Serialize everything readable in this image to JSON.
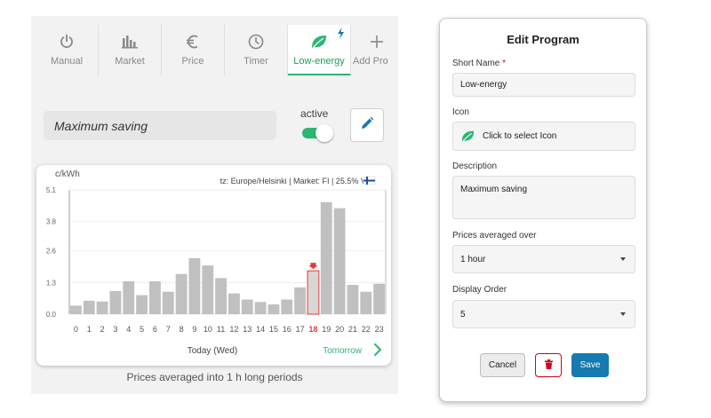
{
  "tabs": [
    {
      "label": "Manual",
      "icon": "power-icon"
    },
    {
      "label": "Market",
      "icon": "bar-chart-icon"
    },
    {
      "label": "Price",
      "icon": "euro-icon"
    },
    {
      "label": "Timer",
      "icon": "clock-icon"
    },
    {
      "label": "Low-energy",
      "icon": "leaf-icon",
      "active": true
    },
    {
      "label": "Add Pro",
      "icon": "plus-icon"
    }
  ],
  "program": {
    "name": "Maximum saving",
    "active_label": "active",
    "active": true
  },
  "chart_data": {
    "type": "bar",
    "unit_label": "c/kWh",
    "info": "tz: Europe/Helsinki | Market: FI | 25.5% VAT",
    "categories": [
      "0",
      "1",
      "2",
      "3",
      "4",
      "5",
      "6",
      "7",
      "8",
      "9",
      "10",
      "11",
      "12",
      "13",
      "14",
      "15",
      "16",
      "17",
      "18",
      "19",
      "20",
      "21",
      "22",
      "23"
    ],
    "values": [
      0.35,
      0.55,
      0.52,
      0.95,
      1.35,
      0.78,
      1.35,
      0.92,
      1.65,
      2.3,
      2.0,
      1.48,
      0.85,
      0.6,
      0.5,
      0.4,
      0.6,
      1.1,
      1.78,
      4.6,
      4.35,
      1.2,
      0.92,
      1.25
    ],
    "highlight_index": 18,
    "yticks": [
      "5.1",
      "3.8",
      "2.6",
      "1.3",
      "0.0"
    ],
    "ylim": [
      0,
      5.1
    ],
    "xlabel": "Today (Wed)",
    "next_label": "Tomorrow",
    "bar_color": "#c0c0c0",
    "highlight_color": "#e53935"
  },
  "footer_text": "Prices averaged into 1 h long periods",
  "dialog": {
    "title": "Edit Program",
    "short_name_label": "Short Name",
    "required_mark": "*",
    "short_name_value": "Low-energy",
    "icon_label": "Icon",
    "icon_value": "Click to select Icon",
    "description_label": "Description",
    "description_value": "Maximum saving",
    "prices_averaged_label": "Prices averaged over",
    "prices_averaged_value": "1 hour",
    "display_order_label": "Display Order",
    "display_order_value": "5",
    "cancel_label": "Cancel",
    "save_label": "Save"
  },
  "colors": {
    "accent_green": "#2bb673",
    "primary_blue": "#1679b0",
    "danger_red": "#d0021b"
  }
}
